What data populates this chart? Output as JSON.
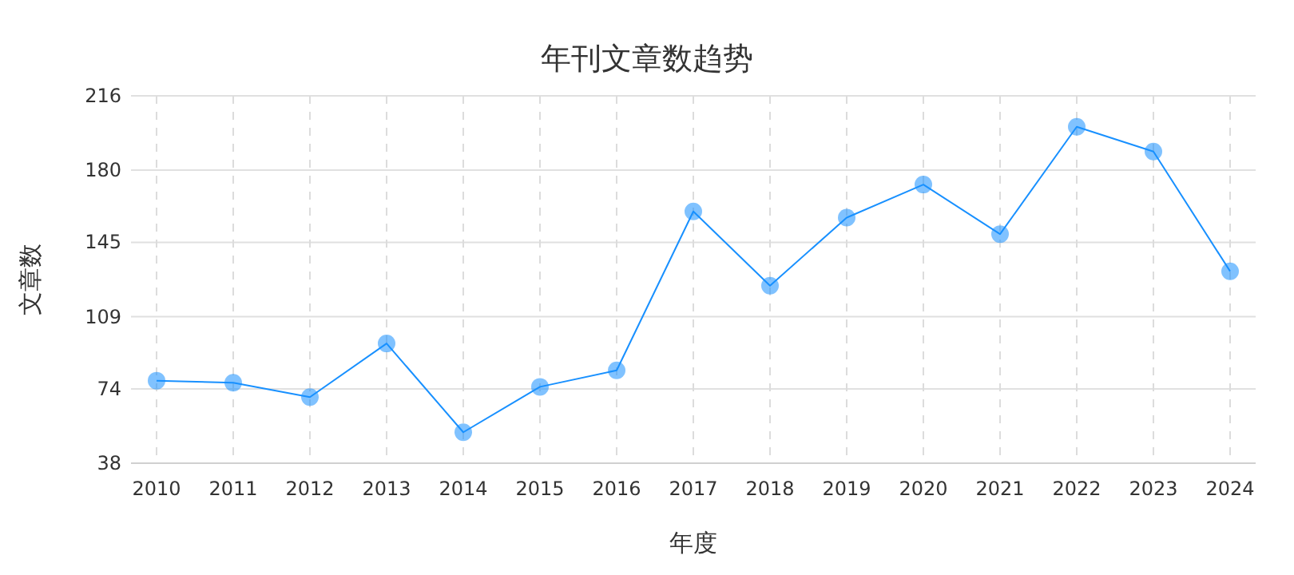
{
  "chart_data": {
    "type": "line",
    "title": "年刊文章数趋势",
    "xlabel": "年度",
    "ylabel": "文章数",
    "categories": [
      "2010",
      "2011",
      "2012",
      "2013",
      "2014",
      "2015",
      "2016",
      "2017",
      "2018",
      "2019",
      "2020",
      "2021",
      "2022",
      "2023",
      "2024"
    ],
    "series": [
      {
        "color": "#1890ff",
        "values": [
          78,
          77,
          70,
          96,
          53,
          75,
          83,
          160,
          124,
          157,
          173,
          149,
          201,
          189,
          131
        ]
      }
    ],
    "ylim": [
      38,
      216
    ],
    "yticks": [
      38,
      74,
      109,
      145,
      180,
      216
    ],
    "grid": true,
    "marker": "circle",
    "line_style": "solid"
  }
}
